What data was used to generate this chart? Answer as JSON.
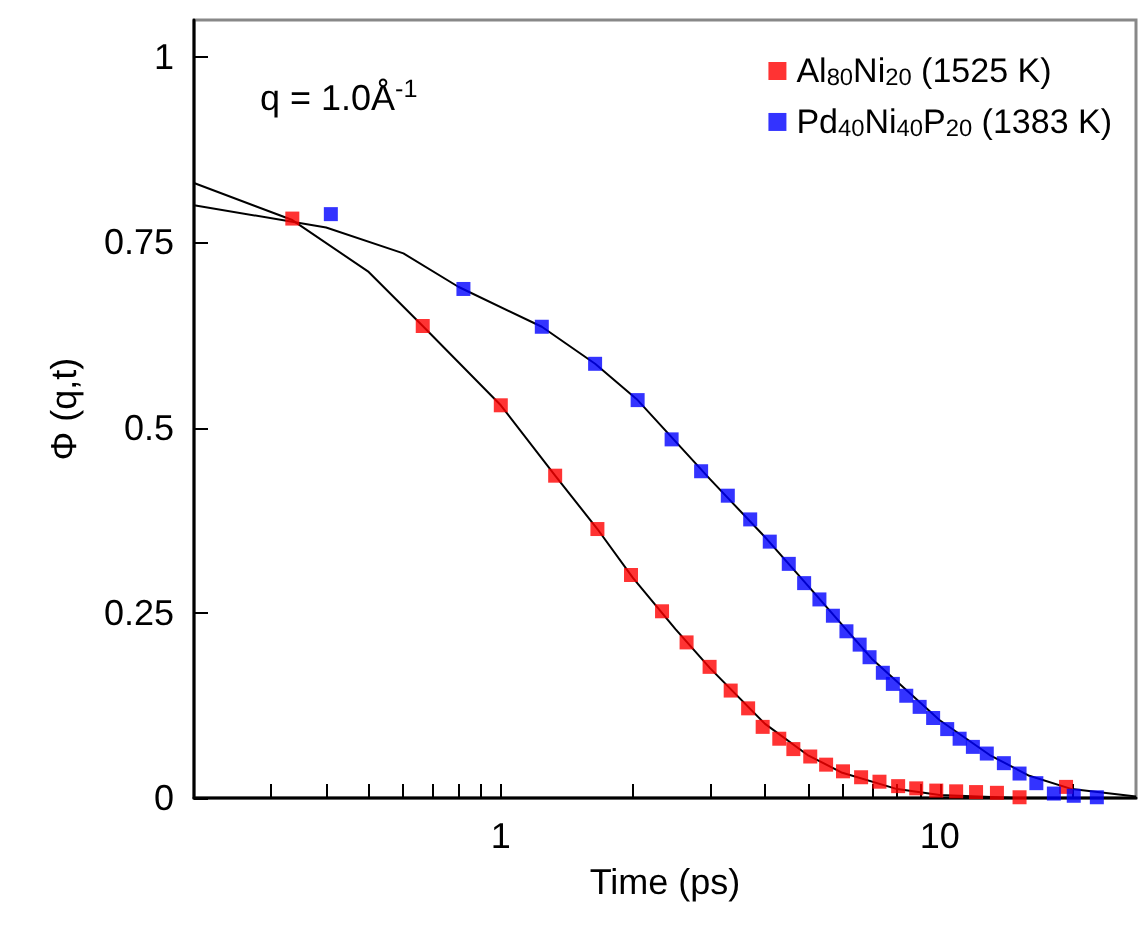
{
  "chart_data": {
    "type": "scatter",
    "xlabel": "Time (ps)",
    "ylabel": "Φ (q,t)",
    "annotations": [
      "q = 1.0Å$^{-1}$"
    ],
    "log": "x",
    "xlim": [
      0.2,
      28
    ],
    "ylim": [
      0,
      1.05
    ],
    "xticks": [
      {
        "value": 0.3,
        "label": null
      },
      {
        "value": 0.4,
        "label": null
      },
      {
        "value": 0.5,
        "label": null
      },
      {
        "value": 0.6,
        "label": null
      },
      {
        "value": 0.7,
        "label": null
      },
      {
        "value": 0.8,
        "label": null
      },
      {
        "value": 0.9,
        "label": null
      },
      1,
      {
        "value": 2,
        "label": null
      },
      {
        "value": 3,
        "label": null
      },
      {
        "value": 4,
        "label": null
      },
      {
        "value": 5,
        "label": null
      },
      {
        "value": 6,
        "label": null
      },
      {
        "value": 7,
        "label": null
      },
      {
        "value": 8,
        "label": null
      },
      {
        "value": 9,
        "label": null
      },
      10,
      {
        "value": 20,
        "label": null
      }
    ],
    "yticks": [
      0,
      0.25,
      0.5,
      0.75,
      1
    ],
    "grid": false,
    "legend": "top right",
    "marker": "square",
    "series": [
      {
        "name": "Al$_{80}$Ni$_{20}$ (1525 K)",
        "color": "#ff0000",
        "x": [
          0.335,
          0.664,
          1.0,
          1.33,
          1.66,
          1.98,
          2.33,
          2.65,
          2.99,
          3.34,
          3.66,
          3.95,
          4.31,
          4.64,
          5.07,
          5.51,
          6.02,
          6.62,
          7.29,
          8.04,
          8.84,
          9.82,
          10.9,
          12.1,
          13.5,
          15.2,
          19.4
        ],
        "values": [
          0.782,
          0.637,
          0.53,
          0.435,
          0.363,
          0.301,
          0.252,
          0.21,
          0.177,
          0.145,
          0.121,
          0.096,
          0.08,
          0.066,
          0.056,
          0.045,
          0.036,
          0.028,
          0.022,
          0.016,
          0.013,
          0.01,
          0.009,
          0.008,
          0.007,
          0.001,
          0.015
        ]
      },
      {
        "name": "Pd$_{40}$Ni$_{40}$P$_{20}$ (1383 K)",
        "color": "#0000ff",
        "x": [
          0.41,
          0.822,
          1.24,
          1.64,
          2.05,
          2.45,
          2.86,
          3.29,
          3.7,
          4.1,
          4.53,
          4.91,
          5.32,
          5.71,
          6.13,
          6.57,
          6.92,
          7.42,
          7.82,
          8.39,
          9.0,
          9.66,
          10.4,
          11.1,
          11.9,
          12.8,
          14.0,
          15.2,
          16.6,
          18.2,
          20.2,
          22.8
        ],
        "values": [
          0.788,
          0.687,
          0.636,
          0.586,
          0.537,
          0.484,
          0.441,
          0.408,
          0.376,
          0.346,
          0.316,
          0.29,
          0.268,
          0.246,
          0.225,
          0.207,
          0.19,
          0.169,
          0.154,
          0.138,
          0.123,
          0.108,
          0.093,
          0.08,
          0.069,
          0.06,
          0.047,
          0.033,
          0.02,
          0.006,
          0.003,
          0.001
        ]
      },
      {
        "type": "line",
        "color": "#000000",
        "marker": "none",
        "line_style": "solid",
        "x": [
          0.2,
          0.335,
          0.5,
          0.664,
          1.0,
          1.33,
          1.66,
          2.0,
          2.5,
          3.0,
          4.0,
          5.0,
          6.0,
          8.0,
          10.0,
          15.0,
          28.0
        ],
        "values": [
          0.83,
          0.78,
          0.71,
          0.637,
          0.53,
          0.435,
          0.363,
          0.297,
          0.228,
          0.175,
          0.1,
          0.058,
          0.034,
          0.012,
          0.004,
          0.0,
          0.0
        ]
      },
      {
        "type": "line",
        "color": "#000000",
        "marker": "none",
        "line_style": "solid",
        "x": [
          0.2,
          0.4,
          0.6,
          0.8,
          1.24,
          1.64,
          2.05,
          3.0,
          4.0,
          5.0,
          7.0,
          10.0,
          13.0,
          16.0,
          20.0,
          28.0
        ],
        "values": [
          0.8,
          0.77,
          0.735,
          0.69,
          0.636,
          0.586,
          0.537,
          0.43,
          0.352,
          0.287,
          0.188,
          0.105,
          0.058,
          0.03,
          0.012,
          0.002
        ]
      }
    ]
  }
}
